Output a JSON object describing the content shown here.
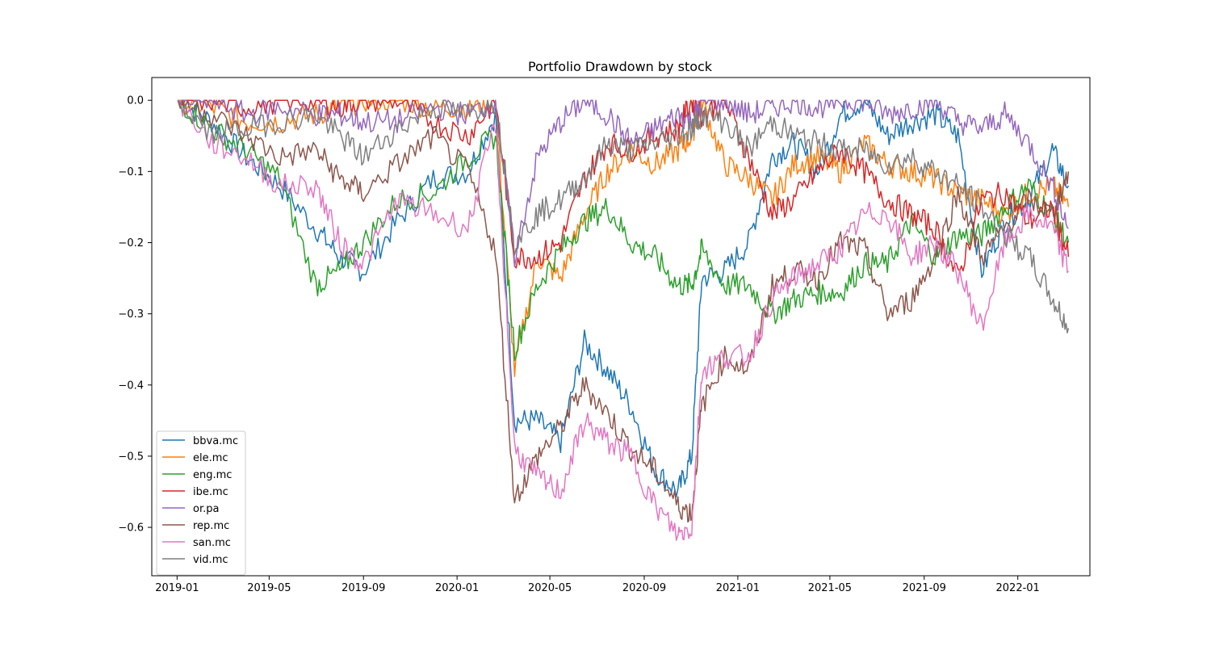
{
  "chart_data": {
    "type": "line",
    "title": "Portfolio Drawdown by stock",
    "xlabel": "",
    "ylabel": "",
    "xlim": [
      "2018-11-29",
      "2022-04-05"
    ],
    "ylim": [
      -0.668,
      0.032
    ],
    "x_ticks": [
      "2019-01",
      "2019-05",
      "2019-09",
      "2020-01",
      "2020-05",
      "2020-09",
      "2021-01",
      "2021-05",
      "2021-09",
      "2022-01"
    ],
    "y_ticks": [
      0.0,
      -0.1,
      -0.2,
      -0.3,
      -0.4,
      -0.5,
      -0.6
    ],
    "y_tick_labels": [
      "0.0",
      "−0.1",
      "−0.2",
      "−0.3",
      "−0.4",
      "−0.5",
      "−0.6"
    ],
    "grid": false,
    "legend_position": "lower-left",
    "x": [
      "2019-01-02",
      "2019-02-15",
      "2019-04-01",
      "2019-05-15",
      "2019-07-01",
      "2019-08-01",
      "2019-09-01",
      "2019-10-15",
      "2019-12-01",
      "2020-01-15",
      "2020-02-20",
      "2020-03-16",
      "2020-04-15",
      "2020-05-15",
      "2020-06-15",
      "2020-07-15",
      "2020-08-15",
      "2020-09-15",
      "2020-10-15",
      "2020-11-02",
      "2020-11-15",
      "2020-12-15",
      "2021-01-15",
      "2021-02-15",
      "2021-03-15",
      "2021-04-15",
      "2021-05-15",
      "2021-06-15",
      "2021-07-15",
      "2021-08-15",
      "2021-09-15",
      "2021-10-15",
      "2021-11-15",
      "2021-12-15",
      "2022-01-15",
      "2022-02-15",
      "2022-03-08"
    ],
    "series": [
      {
        "name": "bbva.mc",
        "color": "#1f77b4",
        "values": [
          0,
          -0.03,
          -0.08,
          -0.12,
          -0.18,
          -0.22,
          -0.24,
          -0.17,
          -0.11,
          -0.1,
          -0.02,
          -0.45,
          -0.45,
          -0.48,
          -0.34,
          -0.38,
          -0.43,
          -0.52,
          -0.55,
          -0.5,
          -0.25,
          -0.24,
          -0.2,
          -0.08,
          -0.06,
          -0.1,
          -0.02,
          0,
          -0.05,
          -0.03,
          -0.02,
          -0.05,
          -0.24,
          -0.17,
          -0.14,
          -0.07,
          -0.12
        ]
      },
      {
        "name": "ele.mc",
        "color": "#ff7f0e",
        "values": [
          0,
          -0.01,
          -0.03,
          -0.03,
          -0.02,
          -0.01,
          0,
          0,
          -0.01,
          -0.01,
          0,
          -0.38,
          -0.22,
          -0.25,
          -0.16,
          -0.1,
          -0.07,
          -0.09,
          -0.07,
          -0.05,
          0,
          -0.09,
          -0.11,
          -0.14,
          -0.09,
          -0.08,
          -0.1,
          -0.06,
          -0.09,
          -0.1,
          -0.11,
          -0.13,
          -0.14,
          -0.16,
          -0.13,
          -0.12,
          -0.15
        ]
      },
      {
        "name": "eng.mc",
        "color": "#2ca02c",
        "values": [
          0,
          -0.04,
          -0.07,
          -0.11,
          -0.26,
          -0.24,
          -0.2,
          -0.14,
          -0.13,
          -0.08,
          -0.05,
          -0.35,
          -0.26,
          -0.21,
          -0.17,
          -0.15,
          -0.2,
          -0.22,
          -0.26,
          -0.26,
          -0.21,
          -0.26,
          -0.26,
          -0.3,
          -0.28,
          -0.27,
          -0.27,
          -0.23,
          -0.23,
          -0.17,
          -0.22,
          -0.19,
          -0.19,
          -0.15,
          -0.12,
          -0.16,
          -0.2
        ]
      },
      {
        "name": "ibe.mc",
        "color": "#d62728",
        "values": [
          0,
          0,
          -0.01,
          0,
          0,
          -0.01,
          0,
          0,
          -0.03,
          -0.05,
          0,
          -0.22,
          -0.22,
          -0.2,
          -0.11,
          -0.06,
          -0.07,
          -0.05,
          -0.04,
          0,
          -0.02,
          0,
          -0.08,
          -0.16,
          -0.14,
          -0.1,
          -0.07,
          -0.1,
          -0.14,
          -0.16,
          -0.18,
          -0.25,
          -0.14,
          -0.13,
          -0.17,
          -0.15,
          -0.22
        ]
      },
      {
        "name": "or.pa",
        "color": "#9467bd",
        "values": [
          0,
          0,
          -0.02,
          -0.01,
          -0.02,
          -0.02,
          -0.03,
          -0.03,
          -0.01,
          -0.02,
          0,
          -0.22,
          -0.08,
          -0.03,
          0,
          -0.02,
          -0.06,
          -0.04,
          -0.02,
          -0.03,
          0,
          0,
          -0.02,
          -0.01,
          0,
          -0.01,
          0,
          0,
          -0.02,
          -0.01,
          0,
          -0.03,
          -0.04,
          -0.02,
          -0.06,
          -0.12,
          -0.18
        ]
      },
      {
        "name": "rep.mc",
        "color": "#8c564b",
        "values": [
          0,
          -0.02,
          -0.05,
          -0.08,
          -0.07,
          -0.11,
          -0.13,
          -0.09,
          -0.05,
          -0.1,
          -0.21,
          -0.56,
          -0.5,
          -0.46,
          -0.4,
          -0.44,
          -0.49,
          -0.52,
          -0.57,
          -0.58,
          -0.43,
          -0.36,
          -0.38,
          -0.26,
          -0.24,
          -0.25,
          -0.2,
          -0.21,
          -0.3,
          -0.28,
          -0.22,
          -0.13,
          -0.22,
          -0.18,
          -0.14,
          -0.16,
          -0.1
        ]
      },
      {
        "name": "san.mc",
        "color": "#e377c2",
        "values": [
          0,
          -0.06,
          -0.08,
          -0.12,
          -0.12,
          -0.2,
          -0.23,
          -0.14,
          -0.16,
          -0.18,
          -0.03,
          -0.49,
          -0.53,
          -0.55,
          -0.45,
          -0.48,
          -0.5,
          -0.57,
          -0.61,
          -0.6,
          -0.38,
          -0.36,
          -0.36,
          -0.28,
          -0.25,
          -0.23,
          -0.21,
          -0.16,
          -0.16,
          -0.22,
          -0.2,
          -0.24,
          -0.32,
          -0.2,
          -0.16,
          -0.18,
          -0.24
        ]
      },
      {
        "name": "vid.mc",
        "color": "#7f7f7f",
        "values": [
          0,
          -0.05,
          -0.04,
          -0.03,
          -0.02,
          -0.05,
          -0.08,
          -0.04,
          -0.01,
          -0.02,
          0,
          -0.2,
          -0.16,
          -0.14,
          -0.11,
          -0.06,
          -0.07,
          -0.06,
          -0.05,
          -0.04,
          -0.02,
          -0.03,
          -0.07,
          -0.03,
          -0.05,
          -0.06,
          -0.07,
          -0.07,
          -0.09,
          -0.08,
          -0.1,
          -0.12,
          -0.15,
          -0.19,
          -0.22,
          -0.28,
          -0.32
        ]
      }
    ]
  }
}
